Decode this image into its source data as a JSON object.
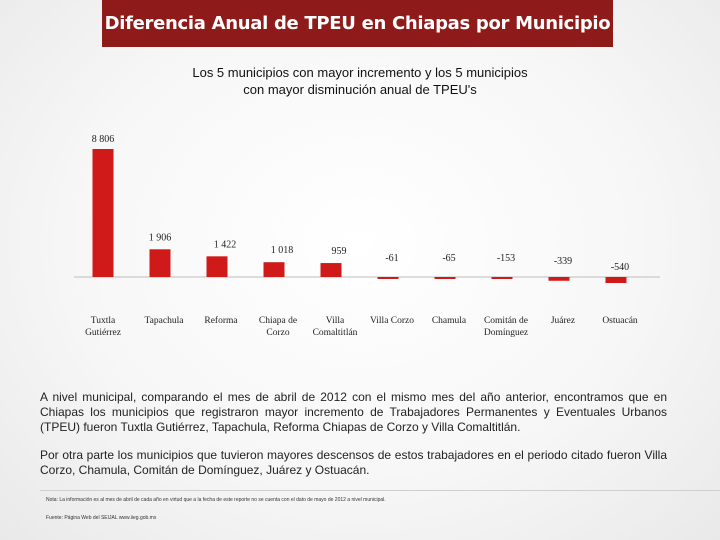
{
  "header": {
    "title": "Diferencia Anual de TPEU en Chiapas por Municipio"
  },
  "chart_data": {
    "type": "bar",
    "title_lines": [
      "Los 5 municipios con mayor incremento y los 5 municipios",
      "con mayor disminución  anual de TPEU's"
    ],
    "categories": [
      [
        "Tuxtla",
        "Gutiérrez"
      ],
      [
        "Tapachula"
      ],
      [
        "Reforma"
      ],
      [
        "Chiapa de",
        "Corzo"
      ],
      [
        "Villa",
        "Comaltitlán"
      ],
      [
        "Villa Corzo"
      ],
      [
        "Chamula"
      ],
      [
        "Comitán de",
        "Domínguez"
      ],
      [
        "Juárez"
      ],
      [
        "Ostuacán"
      ]
    ],
    "values": [
      8806,
      1906,
      1422,
      1018,
      959,
      -61,
      -65,
      -153,
      -339,
      -540
    ],
    "value_labels": [
      "8 806",
      "1 906",
      "1 422",
      "1 018",
      "959",
      "-61",
      "-65",
      "-153",
      "-339",
      "-540"
    ],
    "bar_color": "#d01a1a",
    "axis_color": "#bdbdbd",
    "grid": false,
    "legend": false
  },
  "body": {
    "paragraph1": "A nivel municipal, comparando el mes de abril de 2012 con el mismo mes del año anterior, encontramos que en Chiapas los municipios que registraron mayor incremento de Trabajadores Permanentes y Eventuales Urbanos (TPEU) fueron Tuxtla Gutiérrez, Tapachula, Reforma Chiapas de Corzo y Villa Comaltitlán.",
    "paragraph2": "Por otra parte los municipios que tuvieron mayores descensos de estos trabajadores en el periodo citado fueron Villa Corzo, Chamula, Comitán de Domínguez, Juárez y Ostuacán."
  },
  "footer": {
    "note": "Nota: La información es al mes de abril de cada año en virtud que a la fecha de este reporte no se cuenta con el dato de mayo de 2012 a nivel municipal.",
    "source": "Fuente:    Página Web del SEIJAL www.iieg.gob.mx"
  }
}
